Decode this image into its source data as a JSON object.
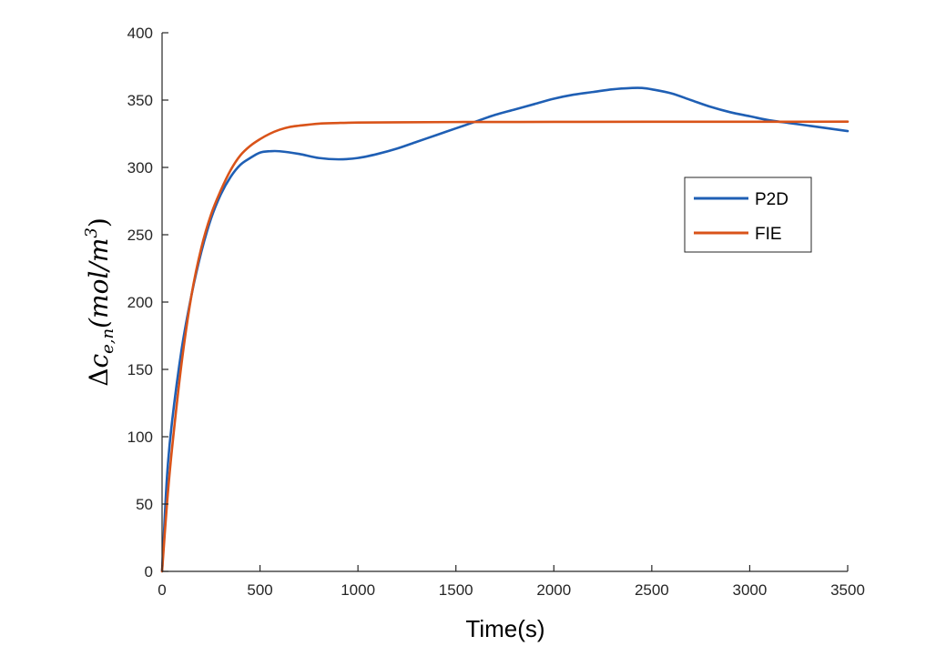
{
  "chart_data": {
    "type": "line",
    "title": "",
    "xlabel": "Time(s)",
    "ylabel": "Δc_{e,n}(mol/m^3)",
    "ylabel_parts": {
      "delta": "Δ",
      "c": "c",
      "sub": "e,n",
      "mid": "(mol/m",
      "sup": "3",
      "close": ")"
    },
    "xlim": [
      0,
      3500
    ],
    "ylim": [
      0,
      400
    ],
    "xticks": [
      0,
      500,
      1000,
      1500,
      2000,
      2500,
      3000,
      3500
    ],
    "yticks": [
      0,
      50,
      100,
      150,
      200,
      250,
      300,
      350,
      400
    ],
    "grid": false,
    "legend_position": "right",
    "series": [
      {
        "name": "P2D",
        "color": "#1f5fb4",
        "x": [
          0,
          25,
          50,
          100,
          150,
          200,
          250,
          300,
          350,
          400,
          450,
          500,
          550,
          600,
          700,
          800,
          900,
          1000,
          1100,
          1200,
          1300,
          1400,
          1500,
          1600,
          1700,
          1800,
          1900,
          2000,
          2100,
          2200,
          2300,
          2400,
          2450,
          2500,
          2600,
          2700,
          2800,
          2900,
          3000,
          3100,
          3200,
          3300,
          3400,
          3500
        ],
        "y": [
          0,
          70,
          110,
          165,
          205,
          237,
          262,
          280,
          293,
          302,
          307,
          311,
          312,
          312,
          310,
          307,
          306,
          307,
          310,
          314,
          319,
          324,
          329,
          334,
          339,
          343,
          347,
          351,
          354,
          356,
          358,
          359,
          359,
          358,
          355,
          350,
          345,
          341,
          338,
          335,
          333,
          331,
          329,
          327
        ]
      },
      {
        "name": "FIE",
        "color": "#d95319",
        "x": [
          0,
          25,
          50,
          100,
          150,
          200,
          250,
          300,
          350,
          400,
          450,
          500,
          550,
          600,
          650,
          700,
          800,
          900,
          1000,
          1200,
          1500,
          2000,
          2500,
          3000,
          3500
        ],
        "y": [
          0,
          50,
          90,
          155,
          205,
          240,
          265,
          283,
          298,
          309,
          316,
          321,
          325,
          328,
          330,
          331,
          332.5,
          333,
          333.3,
          333.5,
          333.7,
          333.8,
          333.9,
          333.9,
          334
        ]
      }
    ]
  }
}
